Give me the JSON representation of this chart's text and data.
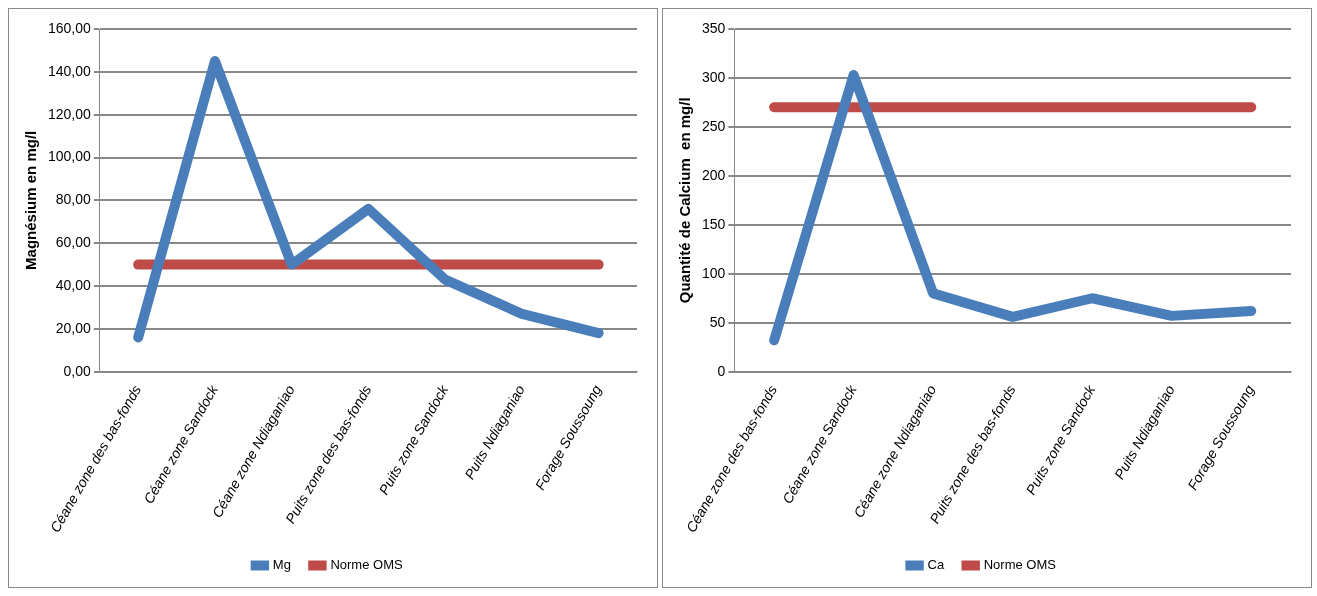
{
  "chart_data": [
    {
      "type": "line",
      "ylabel": "Magnésium en mg/l",
      "categories": [
        "Céane zone des bas-fonds",
        "Céane zone Sandock",
        "Céane zone Ndiaganiao",
        "Puits zone des bas-fonds",
        "Puits zone Sandock",
        "Puits Ndiaganiao",
        "Forage Soussoung"
      ],
      "series": [
        {
          "name": "Mg",
          "color": "#4a7ebb",
          "values": [
            16,
            145,
            50,
            76,
            43,
            27,
            18
          ]
        },
        {
          "name": "Norme OMS",
          "color": "#be4b48",
          "values": [
            50,
            50,
            50,
            50,
            50,
            50,
            50
          ]
        }
      ],
      "ylim": [
        0,
        160
      ],
      "yticks": [
        {
          "value": 0,
          "label": "0,00"
        },
        {
          "value": 20,
          "label": "20,00"
        },
        {
          "value": 40,
          "label": "40,00"
        },
        {
          "value": 60,
          "label": "60,00"
        },
        {
          "value": 80,
          "label": "80,00"
        },
        {
          "value": 100,
          "label": "100,00"
        },
        {
          "value": 120,
          "label": "120,00"
        },
        {
          "value": 140,
          "label": "140,00"
        },
        {
          "value": 160,
          "label": "160,00"
        }
      ],
      "grid": "y",
      "legend": "bottom",
      "marker": "none",
      "line_style": "solid"
    },
    {
      "type": "line",
      "ylabel": "Quantité de Calcium  en mg/l",
      "categories": [
        "Céane zone des bas-fonds",
        "Céane zone Sandock",
        "Céane zone Ndiaganiao",
        "Puits zone des bas-fonds",
        "Puits zone Sandock",
        "Puits Ndiaganiao",
        "Forage Soussoung"
      ],
      "series": [
        {
          "name": "Ca",
          "color": "#4a7ebb",
          "values": [
            32,
            303,
            80,
            56,
            75,
            57,
            62
          ]
        },
        {
          "name": "Norme OMS",
          "color": "#be4b48",
          "values": [
            270,
            270,
            270,
            270,
            270,
            270,
            270
          ]
        }
      ],
      "ylim": [
        0,
        350
      ],
      "yticks": [
        0,
        50,
        100,
        150,
        200,
        250,
        300,
        350
      ],
      "grid": "y",
      "legend": "bottom",
      "marker": "none",
      "line_style": "solid"
    }
  ]
}
